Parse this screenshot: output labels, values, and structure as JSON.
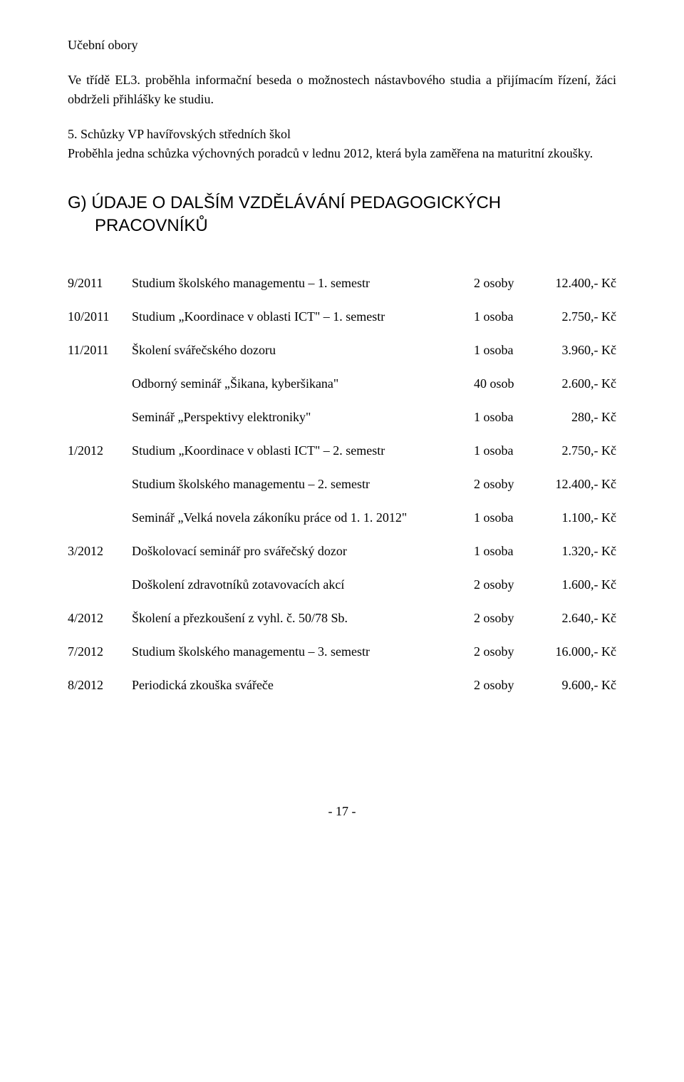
{
  "intro": {
    "heading": "Učební obory",
    "para1": "Ve třídě EL3. proběhla informační beseda o možnostech nástavbového studia a přijímacím řízení, žáci obdrželi přihlášky ke studiu.",
    "item5_title": "5. Schůzky VP havířovských středních škol",
    "para2": "Proběhla jedna schůzka výchovných poradců v lednu 2012, která byla zaměřena na maturitní zkoušky."
  },
  "sectionG": {
    "title_line1": "G) ÚDAJE O DALŠÍM VZDĚLÁVÁNÍ PEDAGOGICKÝCH",
    "title_line2": "PRACOVNÍKŮ"
  },
  "rows": [
    {
      "date": "9/2011",
      "desc": "Studium školského managementu – 1. semestr",
      "count": "2 osoby",
      "cost": "12.400,- Kč"
    },
    {
      "date": "10/2011",
      "desc": "Studium „Koordinace v oblasti ICT\" – 1. semestr",
      "count": "1 osoba",
      "cost": "2.750,- Kč"
    },
    {
      "date": "11/2011",
      "desc": "Školení svářečského dozoru",
      "count": "1 osoba",
      "cost": "3.960,- Kč"
    },
    {
      "date": "",
      "desc": "Odborný seminář „Šikana, kyberšikana\"",
      "count": "40 osob",
      "cost": "2.600,- Kč"
    },
    {
      "date": "",
      "desc": "Seminář „Perspektivy elektroniky\"",
      "count": "1 osoba",
      "cost": "280,- Kč"
    },
    {
      "date": "1/2012",
      "desc": "Studium „Koordinace v oblasti ICT\" – 2. semestr",
      "count": "1 osoba",
      "cost": "2.750,- Kč"
    },
    {
      "date": "",
      "desc": "Studium školského managementu – 2. semestr",
      "count": "2 osoby",
      "cost": "12.400,- Kč"
    },
    {
      "date": "",
      "desc": "Seminář „Velká novela zákoníku práce od 1. 1. 2012\"",
      "count": "1 osoba",
      "cost": "1.100,- Kč"
    },
    {
      "date": "3/2012",
      "desc": "Doškolovací seminář pro svářečský dozor",
      "count": "1 osoba",
      "cost": "1.320,- Kč"
    },
    {
      "date": "",
      "desc": "Doškolení zdravotníků zotavovacích akcí",
      "count": "2 osoby",
      "cost": "1.600,- Kč"
    },
    {
      "date": "4/2012",
      "desc": "Školení a přezkoušení z vyhl. č. 50/78 Sb.",
      "count": "2 osoby",
      "cost": "2.640,- Kč"
    },
    {
      "date": "7/2012",
      "desc": "Studium školského managementu – 3. semestr",
      "count": "2 osoby",
      "cost": "16.000,- Kč"
    },
    {
      "date": "8/2012",
      "desc": "Periodická zkouška svářeče",
      "count": "2 osoby",
      "cost": "9.600,- Kč"
    }
  ],
  "pageNumber": "- 17 -"
}
